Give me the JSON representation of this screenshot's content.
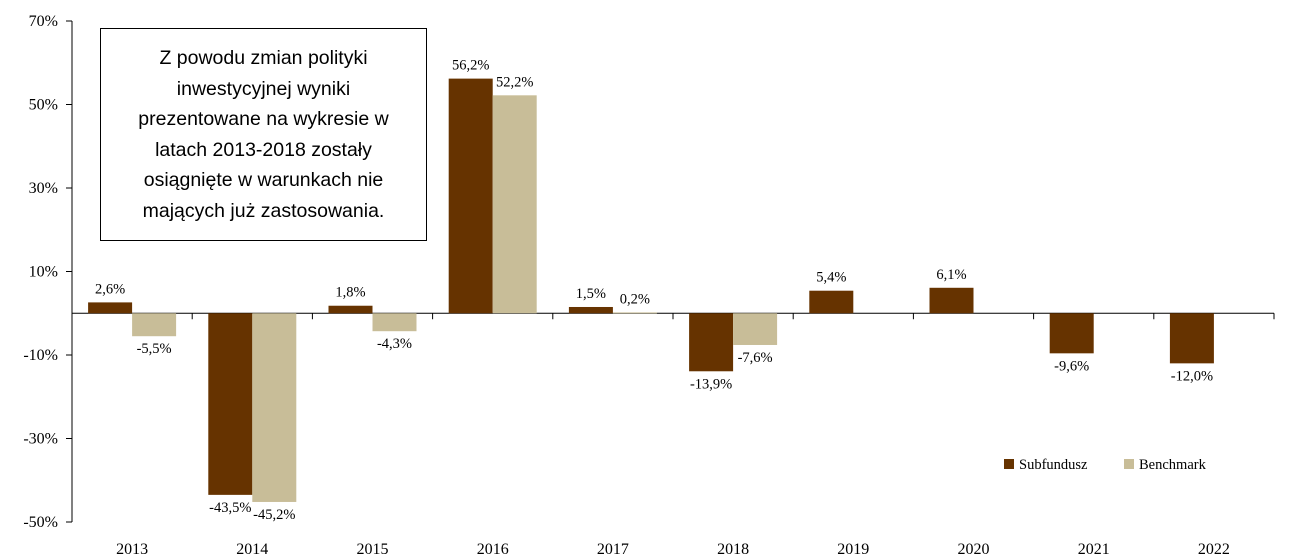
{
  "chart_data": {
    "type": "bar",
    "categories": [
      "2013",
      "2014",
      "2015",
      "2016",
      "2017",
      "2018",
      "2019",
      "2020",
      "2021",
      "2022"
    ],
    "series": [
      {
        "name": "Subfundusz",
        "color": "#663300",
        "values": [
          2.6,
          -43.5,
          1.8,
          56.2,
          1.5,
          -13.9,
          5.4,
          6.1,
          -9.6,
          -12.0
        ],
        "labels": [
          "2,6%",
          "-43,5%",
          "1,8%",
          "56,2%",
          "1,5%",
          "-13,9%",
          "5,4%",
          "6,1%",
          "-9,6%",
          "-12,0%"
        ]
      },
      {
        "name": "Benchmark",
        "color": "#c8bd98",
        "values": [
          -5.5,
          -45.2,
          -4.3,
          52.2,
          0.2,
          -7.6,
          null,
          null,
          null,
          null
        ],
        "labels": [
          "-5,5%",
          "-45,2%",
          "-4,3%",
          "52,2%",
          "0,2%",
          "-7,6%",
          null,
          null,
          null,
          null
        ]
      }
    ],
    "ylim": [
      -50,
      70
    ],
    "yticks": [
      70,
      50,
      30,
      10,
      -10,
      -30,
      -50
    ],
    "ytick_labels": [
      "70%",
      "50%",
      "30%",
      "10%",
      "-10%",
      "-30%",
      "-50%"
    ],
    "legend_position": "bottom-right",
    "grid": false,
    "annotation": "Z powodu zmian polityki inwestycyjnej wyniki prezentowane na wykresie w latach 2013-2018 zostały osiągnięte w warunkach nie mających już zastosowania."
  }
}
